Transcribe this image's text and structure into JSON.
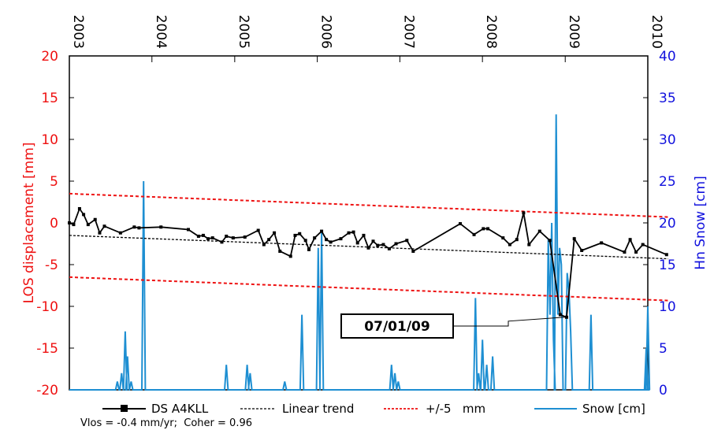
{
  "chart_data": {
    "type": "line",
    "x_axis": {
      "position": "top",
      "type": "date",
      "range": [
        "2003-01-01",
        "2010-01-01"
      ],
      "tick_labels": [
        "2003",
        "2004",
        "2005",
        "2006",
        "2007",
        "2008",
        "2009",
        "2010"
      ],
      "label_rotation": 90
    },
    "y_axis_left": {
      "label": "LOS displacement [mm]",
      "range": [
        -20,
        20
      ],
      "ticks": [
        -20,
        -15,
        -10,
        -5,
        0,
        5,
        10,
        15,
        20
      ],
      "color": "#ee1111"
    },
    "y_axis_right": {
      "label": "Hn Snow [cm]",
      "range": [
        0,
        40
      ],
      "ticks": [
        0,
        5,
        10,
        15,
        20,
        25,
        30,
        35,
        40
      ],
      "color": "#1111dd"
    },
    "grid": false,
    "legend_position": "bottom",
    "legend": [
      {
        "label": "DS A4KLL",
        "color": "#000000",
        "style": "solid-square-marker"
      },
      {
        "label": "Linear trend",
        "color": "#000000",
        "style": "dashed"
      },
      {
        "label": "+/-5   mm",
        "color": "#ee1111",
        "style": "dashed"
      },
      {
        "label": "Snow [cm]",
        "color": "#1e8fd2",
        "style": "solid"
      }
    ],
    "series": [
      {
        "name": "DS A4KLL",
        "axis": "left",
        "color": "#000000",
        "points": [
          [
            "2003-01-01",
            0
          ],
          [
            "2003-01-20",
            -0.2
          ],
          [
            "2003-02-15",
            1.7
          ],
          [
            "2003-03-05",
            1
          ],
          [
            "2003-03-25",
            -0.2
          ],
          [
            "2003-04-25",
            0.4
          ],
          [
            "2003-05-15",
            -1.2
          ],
          [
            "2003-06-05",
            -0.4
          ],
          [
            "2003-08-15",
            -1.2
          ],
          [
            "2003-10-15",
            -0.5
          ],
          [
            "2003-11-05",
            -0.6
          ],
          [
            "2004-02-10",
            -0.5
          ],
          [
            "2004-06-10",
            -0.8
          ],
          [
            "2004-07-25",
            -1.6
          ],
          [
            "2004-08-15",
            -1.5
          ],
          [
            "2004-09-05",
            -1.9
          ],
          [
            "2004-09-25",
            -1.8
          ],
          [
            "2004-11-05",
            -2.3
          ],
          [
            "2004-11-25",
            -1.6
          ],
          [
            "2004-12-25",
            -1.8
          ],
          [
            "2005-02-15",
            -1.7
          ],
          [
            "2005-04-15",
            -0.9
          ],
          [
            "2005-05-10",
            -2.6
          ],
          [
            "2005-06-01",
            -2
          ],
          [
            "2005-06-25",
            -1.2
          ],
          [
            "2005-07-20",
            -3.4
          ],
          [
            "2005-09-05",
            -4
          ],
          [
            "2005-09-25",
            -1.5
          ],
          [
            "2005-10-15",
            -1.3
          ],
          [
            "2005-11-10",
            -2.1
          ],
          [
            "2005-11-25",
            -3.2
          ],
          [
            "2005-12-20",
            -1.8
          ],
          [
            "2006-01-20",
            -1
          ],
          [
            "2006-02-10",
            -2
          ],
          [
            "2006-03-01",
            -2.3
          ],
          [
            "2006-04-15",
            -1.9
          ],
          [
            "2006-05-20",
            -1.2
          ],
          [
            "2006-06-10",
            -1.1
          ],
          [
            "2006-06-28",
            -2.4
          ],
          [
            "2006-07-25",
            -1.5
          ],
          [
            "2006-08-15",
            -3
          ],
          [
            "2006-09-05",
            -2.2
          ],
          [
            "2006-09-25",
            -2.7
          ],
          [
            "2006-10-20",
            -2.6
          ],
          [
            "2006-11-15",
            -3.1
          ],
          [
            "2006-12-15",
            -2.5
          ],
          [
            "2007-02-01",
            -2.1
          ],
          [
            "2007-03-01",
            -3.4
          ],
          [
            "2007-09-25",
            -0.1
          ],
          [
            "2007-11-25",
            -1.4
          ],
          [
            "2008-01-05",
            -0.7
          ],
          [
            "2008-01-25",
            -0.7
          ],
          [
            "2008-04-01",
            -1.8
          ],
          [
            "2008-05-01",
            -2.6
          ],
          [
            "2008-06-01",
            -2
          ],
          [
            "2008-07-01",
            1.2
          ],
          [
            "2008-07-25",
            -2.6
          ],
          [
            "2008-09-10",
            -1
          ],
          [
            "2008-10-25",
            -2.1
          ],
          [
            "2008-12-10",
            -11
          ],
          [
            "2009-01-07",
            -11.3
          ],
          [
            "2009-02-10",
            -1.9
          ],
          [
            "2009-03-15",
            -3.3
          ],
          [
            "2009-06-10",
            -2.4
          ],
          [
            "2009-09-20",
            -3.5
          ],
          [
            "2009-10-15",
            -2
          ],
          [
            "2009-11-10",
            -3.5
          ],
          [
            "2009-12-10",
            -2.6
          ],
          [
            "2010-03-25",
            -3.8
          ]
        ]
      },
      {
        "name": "Linear trend",
        "axis": "left",
        "color": "#000000",
        "points": [
          [
            "2003-01-01",
            -1.5
          ],
          [
            "2010-04-01",
            -4.3
          ]
        ]
      },
      {
        "name": "+5 mm",
        "axis": "left",
        "color": "#ee1111",
        "points": [
          [
            "2003-01-01",
            3.5
          ],
          [
            "2010-04-01",
            0.7
          ]
        ]
      },
      {
        "name": "-5 mm",
        "axis": "left",
        "color": "#ee1111",
        "points": [
          [
            "2003-01-01",
            -6.5
          ],
          [
            "2010-04-01",
            -9.3
          ]
        ]
      },
      {
        "name": "Snow [cm]",
        "axis": "right",
        "color": "#1e8fd2",
        "spikes": [
          {
            "date": "2003-08-01",
            "values": [
              1
            ]
          },
          {
            "date": "2003-08-20",
            "values": [
              2
            ]
          },
          {
            "date": "2003-09-05",
            "values": [
              7
            ]
          },
          {
            "date": "2003-09-15",
            "values": [
              4
            ]
          },
          {
            "date": "2003-10-01",
            "values": [
              1
            ]
          },
          {
            "date": "2003-11-25",
            "values": [
              25
            ]
          },
          {
            "date": "2004-11-25",
            "values": [
              3
            ]
          },
          {
            "date": "2005-02-25",
            "values": [
              3
            ]
          },
          {
            "date": "2005-03-10",
            "values": [
              2
            ]
          },
          {
            "date": "2005-08-10",
            "values": [
              1
            ]
          },
          {
            "date": "2005-10-25",
            "values": [
              9
            ]
          },
          {
            "date": "2006-01-05",
            "values": [
              17
            ]
          },
          {
            "date": "2006-01-20",
            "values": [
              19
            ]
          },
          {
            "date": "2006-11-25",
            "values": [
              3
            ]
          },
          {
            "date": "2006-12-10",
            "values": [
              2
            ]
          },
          {
            "date": "2006-12-25",
            "values": [
              1
            ]
          },
          {
            "date": "2007-12-01",
            "values": [
              11
            ]
          },
          {
            "date": "2007-12-15",
            "values": [
              2
            ]
          },
          {
            "date": "2008-01-01",
            "values": [
              6
            ]
          },
          {
            "date": "2008-01-20",
            "values": [
              3
            ]
          },
          {
            "date": "2008-02-15",
            "values": [
              4
            ]
          },
          {
            "date": "2008-11-10",
            "values": [
              18,
              9,
              20,
              6
            ]
          },
          {
            "date": "2008-12-15",
            "values": [
              33,
              9,
              17,
              15
            ]
          },
          {
            "date": "2009-01-25",
            "values": [
              14,
              12,
              7
            ]
          },
          {
            "date": "2009-04-25",
            "values": [
              9
            ]
          },
          {
            "date": "2009-12-25",
            "values": [
              5
            ]
          },
          {
            "date": "2010-01-01",
            "values": [
              10
            ]
          }
        ]
      }
    ],
    "annotation": {
      "text": "07/01/09",
      "target_date": "2009-01-07",
      "target_value": -11.3
    }
  },
  "footer_text": "Vlos = -0.4 mm/yr;  Coher = 0.96"
}
